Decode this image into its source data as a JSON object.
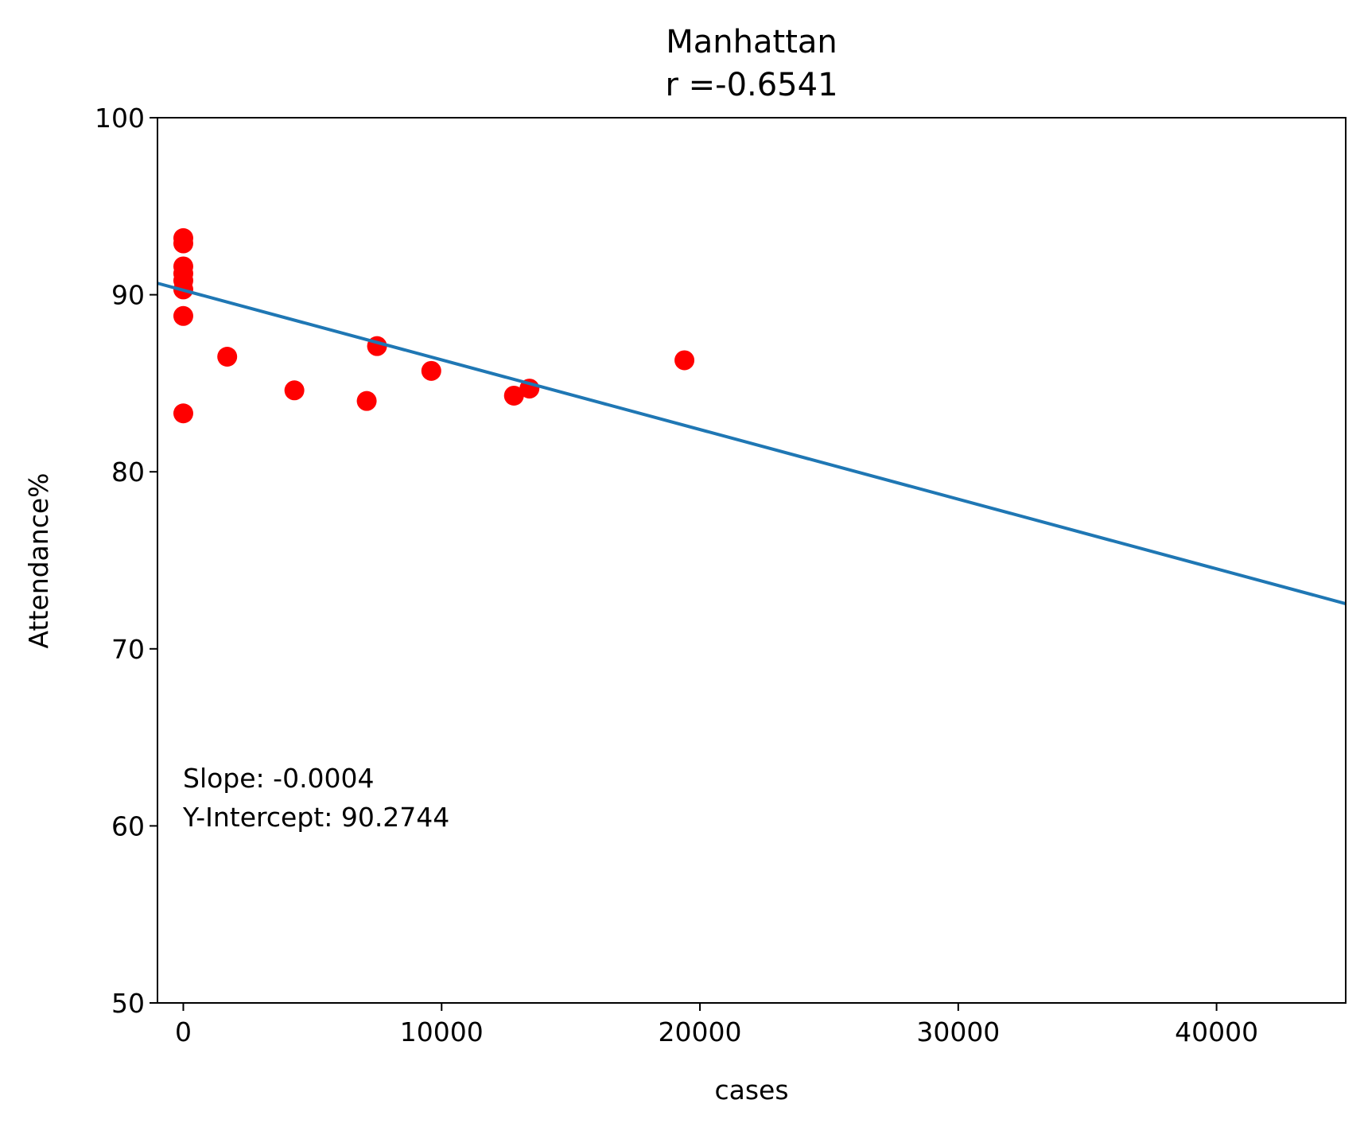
{
  "chart_data": {
    "type": "scatter",
    "title": "Manhattan",
    "subtitle": "r =-0.6541",
    "xlabel": "cases",
    "ylabel": "Attendance%",
    "xlim": [
      -1000,
      45000
    ],
    "ylim": [
      50,
      100
    ],
    "x_ticks": [
      0,
      10000,
      20000,
      30000,
      40000
    ],
    "y_ticks": [
      50,
      60,
      70,
      80,
      90,
      100
    ],
    "grid": false,
    "legend": "none",
    "colors": {
      "points": "#ff0000",
      "fit_line": "#1f77b4"
    },
    "points": [
      {
        "x": 0,
        "y": 93.2
      },
      {
        "x": 0,
        "y": 92.9
      },
      {
        "x": 0,
        "y": 91.6
      },
      {
        "x": 0,
        "y": 91.2
      },
      {
        "x": 0,
        "y": 90.8
      },
      {
        "x": 0,
        "y": 90.3
      },
      {
        "x": 0,
        "y": 88.8
      },
      {
        "x": 0,
        "y": 83.3
      },
      {
        "x": 1700,
        "y": 86.5
      },
      {
        "x": 4300,
        "y": 84.6
      },
      {
        "x": 7100,
        "y": 84.0
      },
      {
        "x": 7500,
        "y": 87.1
      },
      {
        "x": 9600,
        "y": 85.7
      },
      {
        "x": 12800,
        "y": 84.3
      },
      {
        "x": 13400,
        "y": 84.7
      },
      {
        "x": 19400,
        "y": 86.3
      }
    ],
    "fit_line": {
      "x": [
        -1000,
        45000
      ],
      "y": [
        90.65,
        72.55
      ]
    },
    "annotation": {
      "slope": "Slope: -0.0004",
      "intercept": "Y-Intercept: 90.2744"
    }
  }
}
